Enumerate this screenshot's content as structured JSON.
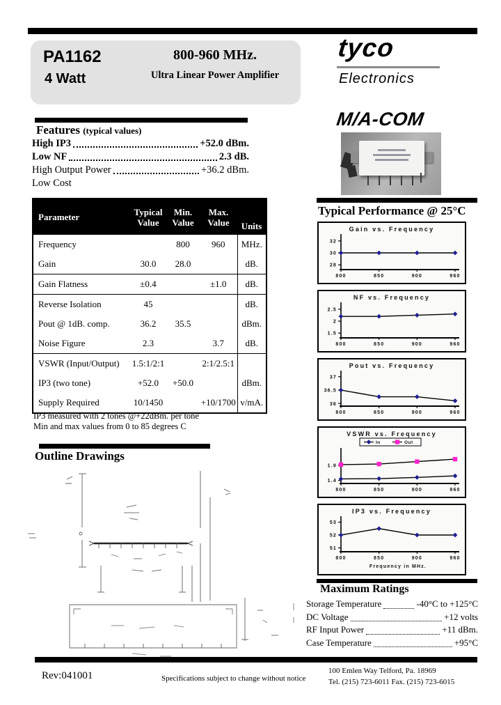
{
  "header": {
    "part_number": "PA1162",
    "power": "4 Watt",
    "frequency_range": "800-960 MHz.",
    "subtitle": "Ultra Linear Power Amplifier"
  },
  "brand": {
    "logo": "tyco",
    "logo_sub": "Electronics",
    "macom": "M/A-COM"
  },
  "features": {
    "title": "Features",
    "title_suffix": "(typical values)",
    "items": [
      {
        "label": "High IP3",
        "value": "+52.0 dBm.",
        "bold": true
      },
      {
        "label": "Low NF",
        "value": "2.3 dB.",
        "bold": true
      },
      {
        "label": "High Output Power",
        "value": "+36.2 dBm.",
        "bold": false
      },
      {
        "label": "Low Cost",
        "value": "",
        "bold": false
      }
    ]
  },
  "spec_table": {
    "headers": [
      {
        "line1": "Parameter",
        "line2": ""
      },
      {
        "line1": "Typical",
        "line2": "Value"
      },
      {
        "line1": "Min.",
        "line2": "Value"
      },
      {
        "line1": "Max.",
        "line2": "Value"
      },
      {
        "line1": "Units",
        "line2": ""
      }
    ],
    "rows": [
      {
        "param": "Frequency",
        "typ": "",
        "min": "800",
        "max": "960",
        "units": "MHz.",
        "sep": false
      },
      {
        "param": "Gain",
        "typ": "30.0",
        "min": "28.0",
        "max": "",
        "units": "dB.",
        "sep": true
      },
      {
        "param": "Gain Flatness",
        "typ": "±0.4",
        "min": "",
        "max": "±1.0",
        "units": "dB.",
        "sep": true
      },
      {
        "param": "Reverse Isolation",
        "typ": "45",
        "min": "",
        "max": "",
        "units": "dB.",
        "sep": false
      },
      {
        "param": "Pout @ 1dB. comp.",
        "typ": "36.2",
        "min": "35.5",
        "max": "",
        "units": "dBm.",
        "sep": false
      },
      {
        "param": "Noise Figure",
        "typ": "2.3",
        "min": "",
        "max": "3.7",
        "units": "dB.",
        "sep": true
      },
      {
        "param": "VSWR (Input/Output)",
        "typ": "1.5:1/2:1",
        "min": "",
        "max": "2:1/2.5:1",
        "units": "",
        "sep": false
      },
      {
        "param": "IP3 (two tone)",
        "typ": "+52.0",
        "min": "+50.0",
        "max": "",
        "units": "dBm.",
        "sep": false
      },
      {
        "param": "Supply Required",
        "typ": "10/1450",
        "min": "",
        "max": "+10/1700",
        "units": "v/mA.",
        "sep": false
      }
    ],
    "notes": [
      "IP3 measured with 2 tones @+22dBm. per tone",
      "Min and max values from 0 to 85 degrees C"
    ]
  },
  "performance": {
    "title": "Typical Performance @ 25°C"
  },
  "chart_data": [
    {
      "type": "line",
      "title": "Gain vs. Frequency",
      "x": [
        800,
        850,
        900,
        960
      ],
      "yticks": [
        32,
        30,
        28
      ],
      "ylim": [
        27.2,
        32.8
      ],
      "series": [
        {
          "name": "Gain",
          "values": [
            30,
            30,
            30,
            30
          ],
          "marker": "diamond",
          "color": "#1F1F8F"
        }
      ]
    },
    {
      "type": "line",
      "title": "NF vs. Frequency",
      "x": [
        800,
        850,
        900,
        960
      ],
      "yticks": [
        2.5,
        2,
        1.5
      ],
      "ylim": [
        1.3,
        2.7
      ],
      "series": [
        {
          "name": "NF",
          "values": [
            2.2,
            2.2,
            2.25,
            2.3
          ],
          "marker": "diamond",
          "color": "#1F1F8F"
        }
      ]
    },
    {
      "type": "line",
      "title": "Pout vs. Frequency",
      "x": [
        800,
        850,
        900,
        960
      ],
      "yticks": [
        37,
        36.5,
        36
      ],
      "ylim": [
        35.9,
        37.15
      ],
      "series": [
        {
          "name": "Pout",
          "values": [
            36.5,
            36.25,
            36.25,
            36.1
          ],
          "marker": "diamond",
          "color": "#1F1F8F"
        }
      ]
    },
    {
      "type": "line",
      "title": "VSWR vs. Frequency",
      "x": [
        800,
        850,
        900,
        960
      ],
      "yticks": [
        1.9,
        1.4
      ],
      "ylim": [
        1.3,
        2.4
      ],
      "legend": true,
      "series": [
        {
          "name": "In",
          "values": [
            1.45,
            1.46,
            1.5,
            1.55
          ],
          "marker": "diamond",
          "color": "#1F1F8F"
        },
        {
          "name": "Out",
          "values": [
            1.92,
            1.94,
            2.02,
            2.1
          ],
          "marker": "square",
          "color": "#FF22CC"
        }
      ]
    },
    {
      "type": "line",
      "title": "IP3 vs. Frequency",
      "x": [
        800,
        850,
        900,
        960
      ],
      "yticks": [
        53,
        52,
        51
      ],
      "ylim": [
        50.7,
        53.3
      ],
      "xlabel": "Frequency in MHz.",
      "series": [
        {
          "name": "IP3",
          "values": [
            52,
            52.5,
            52,
            52
          ],
          "marker": "diamond",
          "color": "#1F1F8F"
        }
      ]
    }
  ],
  "outline": {
    "title": "Outline Drawings"
  },
  "max_ratings": {
    "title": "Maximum Ratings",
    "items": [
      {
        "label": "Storage Temperature",
        "value": "-40°C to +125°C"
      },
      {
        "label": "DC Voltage",
        "value": "+12 volts"
      },
      {
        "label": "RF Input Power",
        "value": "+11 dBm."
      },
      {
        "label": "Case Temperature",
        "value": "+95°C"
      }
    ]
  },
  "footer": {
    "rev": "Rev:041001",
    "notice": "Specifications subject to change without notice",
    "address_line1": "100 Emlen Way    Telford, Pa.   18969",
    "address_line2": "Tel. (215) 723-6011       Fax.  (215) 723-6015"
  },
  "colors": {
    "marker_navy": "#1F1F8F",
    "marker_magenta": "#FF22CC",
    "header_box_gray": "#e2e2e2"
  }
}
